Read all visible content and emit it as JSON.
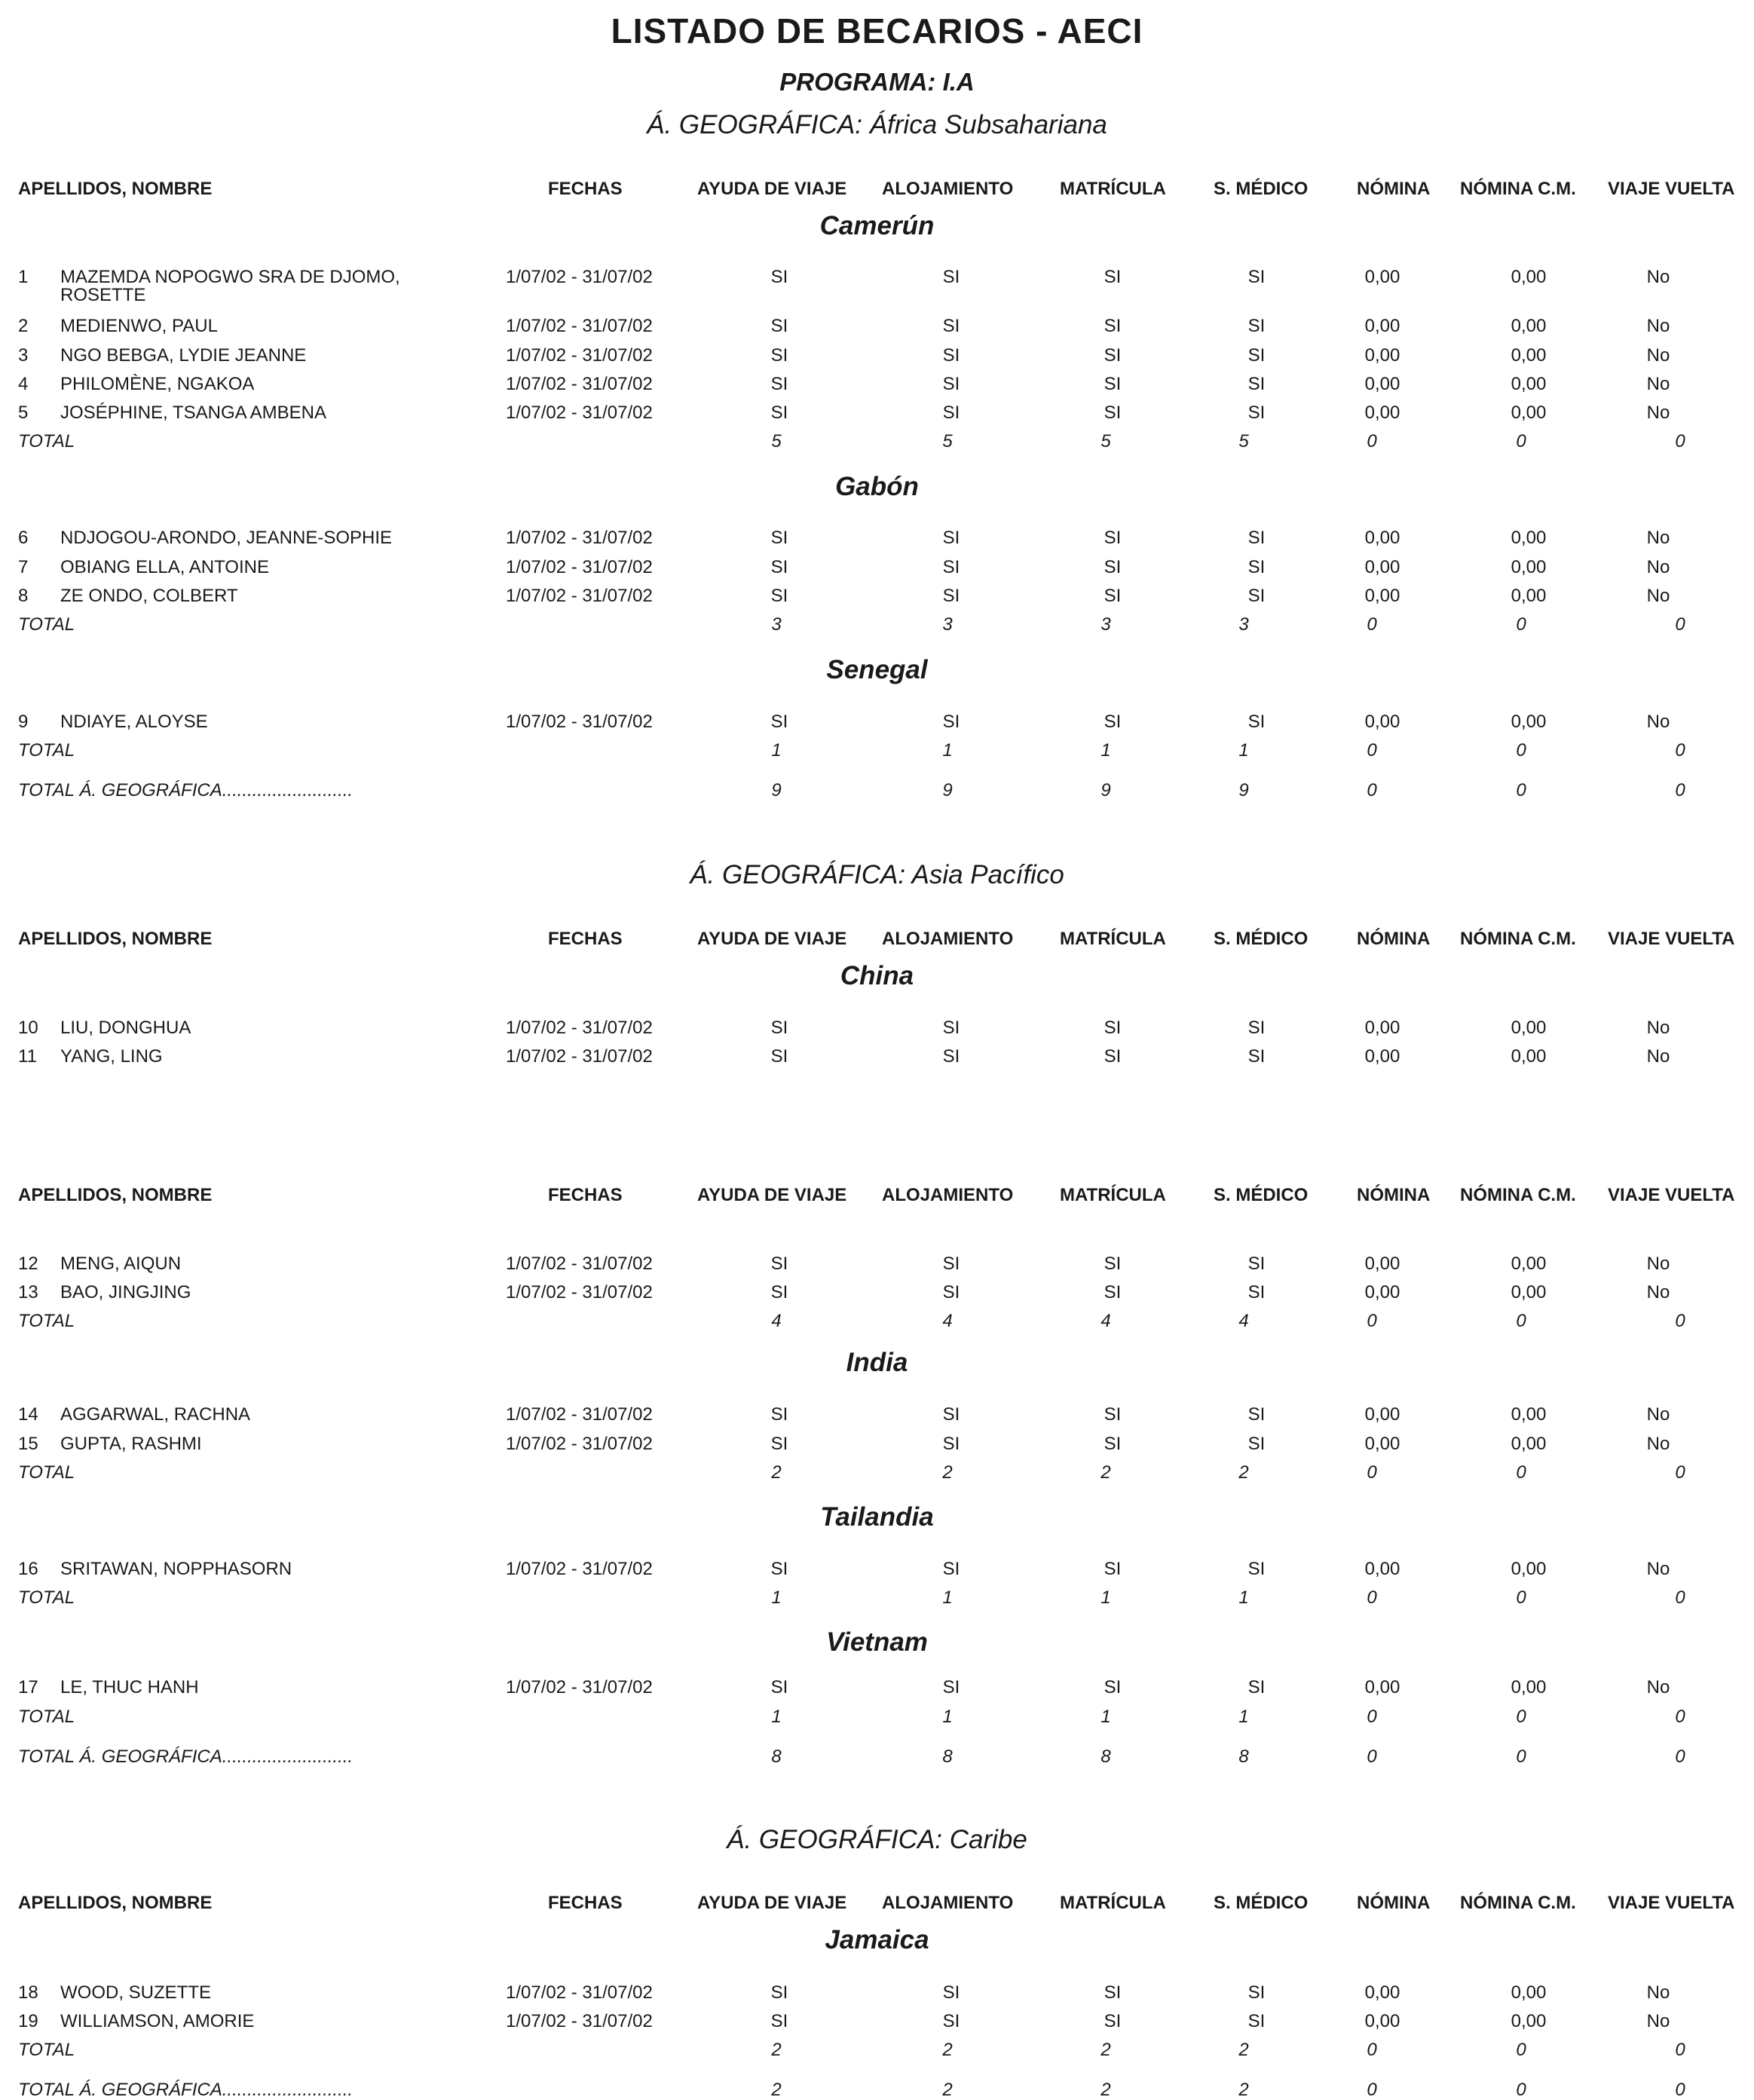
{
  "title": "LISTADO DE BECARIOS - AECI",
  "program": "PROGRAMA: I.A",
  "headers": [
    "APELLIDOS, NOMBRE",
    "FECHAS",
    "AYUDA DE VIAJE",
    "ALOJAMIENTO",
    "MATRÍCULA",
    "S. MÉDICO",
    "NÓMINA",
    "NÓMINA C.M.",
    "VIAJE VUELTA"
  ],
  "total_label": "TOTAL",
  "area_total_label": "TOTAL Á. GEOGRÁFICA..........................",
  "areas": [
    {
      "label": "Á. GEOGRÁFICA: África Subsahariana",
      "countries": [
        {
          "name": "Camerún",
          "rows": [
            {
              "num": "1",
              "name": "MAZEMDA NOPOGWO SRA DE DJOMO,",
              "name2": "ROSETTE",
              "dates": "1/07/02 - 31/07/02",
              "ayuda": "SI",
              "aloj": "SI",
              "matr": "SI",
              "smed": "SI",
              "nomina": "0,00",
              "nominacm": "0,00",
              "viaje": "No"
            },
            {
              "num": "2",
              "name": "MEDIENWO, PAUL",
              "dates": "1/07/02 - 31/07/02",
              "ayuda": "SI",
              "aloj": "SI",
              "matr": "SI",
              "smed": "SI",
              "nomina": "0,00",
              "nominacm": "0,00",
              "viaje": "No"
            },
            {
              "num": "3",
              "name": "NGO BEBGA, LYDIE JEANNE",
              "dates": "1/07/02 - 31/07/02",
              "ayuda": "SI",
              "aloj": "SI",
              "matr": "SI",
              "smed": "SI",
              "nomina": "0,00",
              "nominacm": "0,00",
              "viaje": "No"
            },
            {
              "num": "4",
              "name": "PHILOMÈNE, NGAKOA",
              "dates": "1/07/02 - 31/07/02",
              "ayuda": "SI",
              "aloj": "SI",
              "matr": "SI",
              "smed": "SI",
              "nomina": "0,00",
              "nominacm": "0,00",
              "viaje": "No"
            },
            {
              "num": "5",
              "name": "JOSÉPHINE, TSANGA  AMBENA",
              "dates": "1/07/02 - 31/07/02",
              "ayuda": "SI",
              "aloj": "SI",
              "matr": "SI",
              "smed": "SI",
              "nomina": "0,00",
              "nominacm": "0,00",
              "viaje": "No"
            }
          ],
          "total": [
            "5",
            "5",
            "5",
            "5",
            "0",
            "0",
            "0"
          ]
        },
        {
          "name": "Gabón",
          "rows": [
            {
              "num": "6",
              "name": "NDJOGOU-ARONDO, JEANNE-SOPHIE",
              "dates": "1/07/02 - 31/07/02",
              "ayuda": "SI",
              "aloj": "SI",
              "matr": "SI",
              "smed": "SI",
              "nomina": "0,00",
              "nominacm": "0,00",
              "viaje": "No"
            },
            {
              "num": "7",
              "name": "OBIANG ELLA, ANTOINE",
              "dates": "1/07/02 - 31/07/02",
              "ayuda": "SI",
              "aloj": "SI",
              "matr": "SI",
              "smed": "SI",
              "nomina": "0,00",
              "nominacm": "0,00",
              "viaje": "No"
            },
            {
              "num": "8",
              "name": "ZE ONDO, COLBERT",
              "dates": "1/07/02 - 31/07/02",
              "ayuda": "SI",
              "aloj": "SI",
              "matr": "SI",
              "smed": "SI",
              "nomina": "0,00",
              "nominacm": "0,00",
              "viaje": "No"
            }
          ],
          "total": [
            "3",
            "3",
            "3",
            "3",
            "0",
            "0",
            "0"
          ]
        },
        {
          "name": "Senegal",
          "rows": [
            {
              "num": "9",
              "name": "NDIAYE, ALOYSE",
              "dates": "1/07/02 - 31/07/02",
              "ayuda": "SI",
              "aloj": "SI",
              "matr": "SI",
              "smed": "SI",
              "nomina": "0,00",
              "nominacm": "0,00",
              "viaje": "No"
            }
          ],
          "total": [
            "1",
            "1",
            "1",
            "1",
            "0",
            "0",
            "0"
          ]
        }
      ],
      "area_total": [
        "9",
        "9",
        "9",
        "9",
        "0",
        "0",
        "0"
      ]
    },
    {
      "label": "Á. GEOGRÁFICA: Asia Pacífico",
      "countries": [
        {
          "name": "China",
          "rows": [
            {
              "num": "10",
              "name": "LIU, DONGHUA",
              "dates": "1/07/02 - 31/07/02",
              "ayuda": "SI",
              "aloj": "SI",
              "matr": "SI",
              "smed": "SI",
              "nomina": "0,00",
              "nominacm": "0,00",
              "viaje": "No"
            },
            {
              "num": "11",
              "name": "YANG, LING",
              "dates": "1/07/02 - 31/07/02",
              "ayuda": "SI",
              "aloj": "SI",
              "matr": "SI",
              "smed": "SI",
              "nomina": "0,00",
              "nominacm": "0,00",
              "viaje": "No"
            },
            {
              "num": "12",
              "name": "MENG, AIQUN",
              "dates": "1/07/02 - 31/07/02",
              "ayuda": "SI",
              "aloj": "SI",
              "matr": "SI",
              "smed": "SI",
              "nomina": "0,00",
              "nominacm": "0,00",
              "viaje": "No"
            },
            {
              "num": "13",
              "name": "BAO, JINGJING",
              "dates": "1/07/02 - 31/07/02",
              "ayuda": "SI",
              "aloj": "SI",
              "matr": "SI",
              "smed": "SI",
              "nomina": "0,00",
              "nominacm": "0,00",
              "viaje": "No"
            }
          ],
          "total": [
            "4",
            "4",
            "4",
            "4",
            "0",
            "0",
            "0"
          ]
        },
        {
          "name": "India",
          "rows": [
            {
              "num": "14",
              "name": "AGGARWAL, RACHNA",
              "dates": "1/07/02 - 31/07/02",
              "ayuda": "SI",
              "aloj": "SI",
              "matr": "SI",
              "smed": "SI",
              "nomina": "0,00",
              "nominacm": "0,00",
              "viaje": "No"
            },
            {
              "num": "15",
              "name": "GUPTA, RASHMI",
              "dates": "1/07/02 - 31/07/02",
              "ayuda": "SI",
              "aloj": "SI",
              "matr": "SI",
              "smed": "SI",
              "nomina": "0,00",
              "nominacm": "0,00",
              "viaje": "No"
            }
          ],
          "total": [
            "2",
            "2",
            "2",
            "2",
            "0",
            "0",
            "0"
          ]
        },
        {
          "name": "Tailandia",
          "rows": [
            {
              "num": "16",
              "name": "SRITAWAN, NOPPHASORN",
              "dates": "1/07/02 - 31/07/02",
              "ayuda": "SI",
              "aloj": "SI",
              "matr": "SI",
              "smed": "SI",
              "nomina": "0,00",
              "nominacm": "0,00",
              "viaje": "No"
            }
          ],
          "total": [
            "1",
            "1",
            "1",
            "1",
            "0",
            "0",
            "0"
          ]
        },
        {
          "name": "Vietnam",
          "rows": [
            {
              "num": "17",
              "name": "LE, THUC HANH",
              "dates": "1/07/02 - 31/07/02",
              "ayuda": "SI",
              "aloj": "SI",
              "matr": "SI",
              "smed": "SI",
              "nomina": "0,00",
              "nominacm": "0,00",
              "viaje": "No"
            }
          ],
          "total": [
            "1",
            "1",
            "1",
            "1",
            "0",
            "0",
            "0"
          ]
        }
      ],
      "area_total": [
        "8",
        "8",
        "8",
        "8",
        "0",
        "0",
        "0"
      ]
    },
    {
      "label": "Á. GEOGRÁFICA: Caribe",
      "countries": [
        {
          "name": "Jamaica",
          "rows": [
            {
              "num": "18",
              "name": "WOOD, SUZETTE",
              "dates": "1/07/02 - 31/07/02",
              "ayuda": "SI",
              "aloj": "SI",
              "matr": "SI",
              "smed": "SI",
              "nomina": "0,00",
              "nominacm": "0,00",
              "viaje": "No"
            },
            {
              "num": "19",
              "name": "WILLIAMSON, AMORIE",
              "dates": "1/07/02 - 31/07/02",
              "ayuda": "SI",
              "aloj": "SI",
              "matr": "SI",
              "smed": "SI",
              "nomina": "0,00",
              "nominacm": "0,00",
              "viaje": "No"
            }
          ],
          "total": [
            "2",
            "2",
            "2",
            "2",
            "0",
            "0",
            "0"
          ]
        }
      ],
      "area_total": [
        "2",
        "2",
        "2",
        "2",
        "0",
        "0",
        "0"
      ]
    }
  ]
}
